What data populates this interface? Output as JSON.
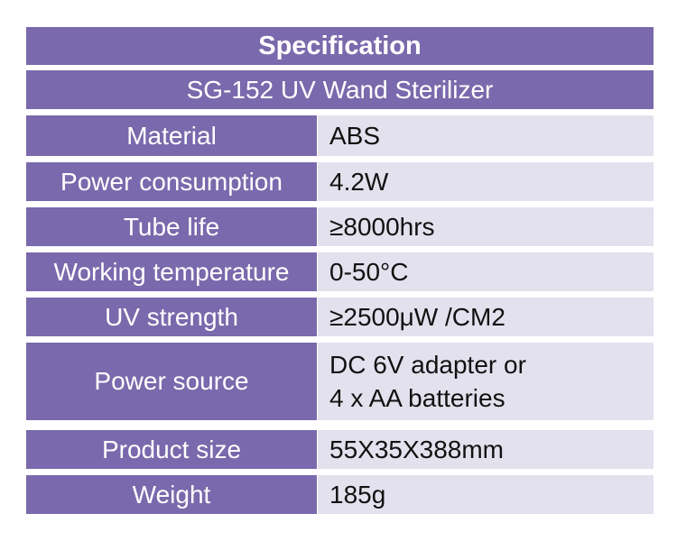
{
  "header": {
    "title": "Specification",
    "subtitle": "SG-152 UV Wand Sterilizer"
  },
  "table": {
    "rows": [
      [
        "Material",
        "ABS"
      ],
      [
        "Power consumption",
        "4.2W"
      ],
      [
        "Tube life",
        "≥8000hrs"
      ],
      [
        "Working temperature",
        "0-50°C"
      ],
      [
        "UV strength",
        "≥2500μW /CM2"
      ],
      [
        "Power source",
        "DC 6V adapter or\n4 x AA batteries"
      ],
      [
        "Product size",
        "55X35X388mm"
      ],
      [
        "Weight",
        "185g"
      ]
    ]
  }
}
